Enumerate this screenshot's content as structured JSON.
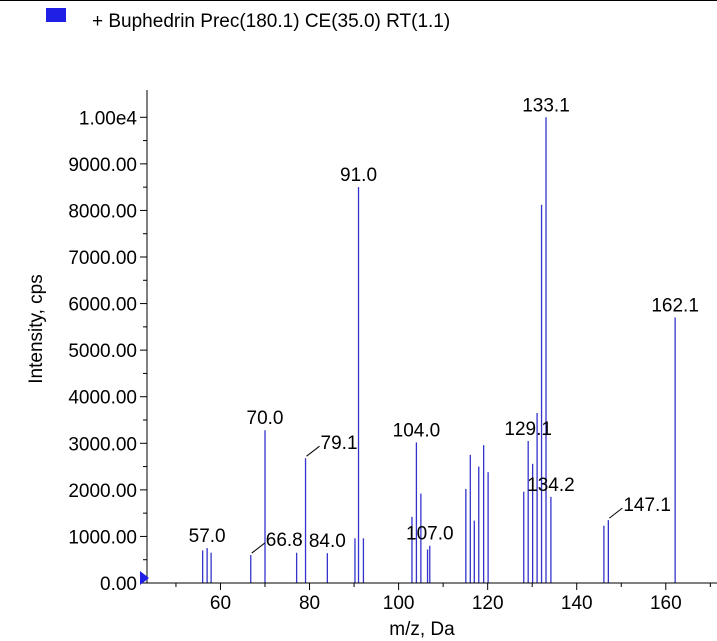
{
  "legend": {
    "label": "+ Buphedrin Prec(180.1) CE(35.0) RT(1.1)",
    "swatch_color": "#1f1fe6"
  },
  "colors": {
    "peak": "#3333cc",
    "axis": "#000000",
    "marker": "#1f1fe6"
  },
  "chart_data": {
    "type": "bar",
    "xlabel": "m/z, Da",
    "ylabel": "Intensity, cps",
    "xlim": [
      43.5,
      171.5
    ],
    "ylim": [
      0,
      10500
    ],
    "x_ticks": [
      60,
      80,
      100,
      120,
      140,
      160
    ],
    "x_tick_labels": [
      "60",
      "80",
      "100",
      "120",
      "140",
      "160"
    ],
    "y_ticks": [
      0,
      1000,
      2000,
      3000,
      4000,
      5000,
      6000,
      7000,
      8000,
      9000,
      10000
    ],
    "y_tick_labels": [
      "0.00",
      "1000.00",
      "2000.00",
      "3000.00",
      "4000.00",
      "5000.00",
      "6000.00",
      "7000.00",
      "8000.00",
      "9000.00",
      "1.00e4"
    ],
    "grid": false,
    "peaks": [
      {
        "mz": 56.0,
        "intensity": 700
      },
      {
        "mz": 57.0,
        "intensity": 750
      },
      {
        "mz": 57.9,
        "intensity": 650
      },
      {
        "mz": 66.8,
        "intensity": 600
      },
      {
        "mz": 70.0,
        "intensity": 3280
      },
      {
        "mz": 77.1,
        "intensity": 650
      },
      {
        "mz": 79.1,
        "intensity": 2680
      },
      {
        "mz": 84.0,
        "intensity": 640
      },
      {
        "mz": 90.2,
        "intensity": 960
      },
      {
        "mz": 91.0,
        "intensity": 8500
      },
      {
        "mz": 92.1,
        "intensity": 960
      },
      {
        "mz": 103.0,
        "intensity": 1420
      },
      {
        "mz": 104.0,
        "intensity": 3020
      },
      {
        "mz": 105.0,
        "intensity": 1920
      },
      {
        "mz": 106.5,
        "intensity": 720
      },
      {
        "mz": 107.0,
        "intensity": 800
      },
      {
        "mz": 115.1,
        "intensity": 2020
      },
      {
        "mz": 116.1,
        "intensity": 2750
      },
      {
        "mz": 117.0,
        "intensity": 1340
      },
      {
        "mz": 118.0,
        "intensity": 2500
      },
      {
        "mz": 119.1,
        "intensity": 2960
      },
      {
        "mz": 120.1,
        "intensity": 2380
      },
      {
        "mz": 128.1,
        "intensity": 1960
      },
      {
        "mz": 129.1,
        "intensity": 3050
      },
      {
        "mz": 130.1,
        "intensity": 2560
      },
      {
        "mz": 131.1,
        "intensity": 3650
      },
      {
        "mz": 132.1,
        "intensity": 8120
      },
      {
        "mz": 133.1,
        "intensity": 10000
      },
      {
        "mz": 134.2,
        "intensity": 1850
      },
      {
        "mz": 146.1,
        "intensity": 1230
      },
      {
        "mz": 147.1,
        "intensity": 1350
      },
      {
        "mz": 162.1,
        "intensity": 5700
      }
    ],
    "annotations": [
      {
        "text": "57.0",
        "mz": 57.0,
        "intensity": 750
      },
      {
        "text": "66.8",
        "mz": 66.8,
        "intensity": 600,
        "leader": true
      },
      {
        "text": "70.0",
        "mz": 70.0,
        "intensity": 3280
      },
      {
        "text": "79.1",
        "mz": 79.1,
        "intensity": 2680,
        "leader": true
      },
      {
        "text": "84.0",
        "mz": 84.0,
        "intensity": 640
      },
      {
        "text": "91.0",
        "mz": 91.0,
        "intensity": 8500
      },
      {
        "text": "104.0",
        "mz": 104.0,
        "intensity": 3020
      },
      {
        "text": "107.0",
        "mz": 107.0,
        "intensity": 800
      },
      {
        "text": "129.1",
        "mz": 129.1,
        "intensity": 3050
      },
      {
        "text": "133.1",
        "mz": 133.1,
        "intensity": 10000
      },
      {
        "text": "134.2",
        "mz": 134.2,
        "intensity": 1850
      },
      {
        "text": "147.1",
        "mz": 147.1,
        "intensity": 1350,
        "leader": true
      },
      {
        "text": "162.1",
        "mz": 162.1,
        "intensity": 5700
      }
    ]
  }
}
